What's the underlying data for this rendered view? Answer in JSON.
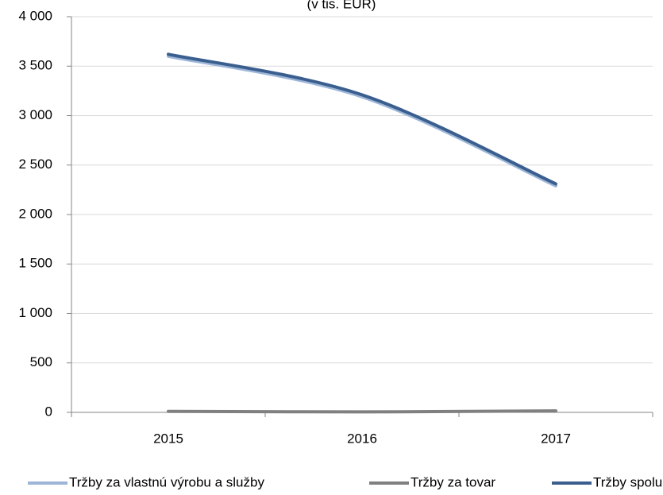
{
  "chart_data": {
    "type": "line",
    "subtitle": "(v tis. EUR)",
    "categories": [
      "2015",
      "2016",
      "2017"
    ],
    "series": [
      {
        "name": "Tržby za vlastnú výrobu a služby",
        "color": "#9db6d8",
        "values": [
          3600,
          3190,
          2290
        ]
      },
      {
        "name": "Tržby za tovar",
        "color": "#808080",
        "values": [
          10,
          5,
          15
        ]
      },
      {
        "name": "Tržby spolu",
        "color": "#3a5f8f",
        "values": [
          3620,
          3210,
          2310
        ]
      }
    ],
    "ylim": [
      0,
      4000
    ],
    "yticks": [
      0,
      500,
      {
        "value": 1000,
        "label": "1 000"
      },
      {
        "value": 1500,
        "label": "1 500"
      },
      {
        "value": 2000,
        "label": "2 000"
      },
      {
        "value": 2500,
        "label": "2 500"
      },
      {
        "value": 3000,
        "label": "3 000"
      },
      {
        "value": 3500,
        "label": "3 500"
      },
      {
        "value": 4000,
        "label": "4 000"
      }
    ],
    "grid": true,
    "legend": "bottom"
  }
}
